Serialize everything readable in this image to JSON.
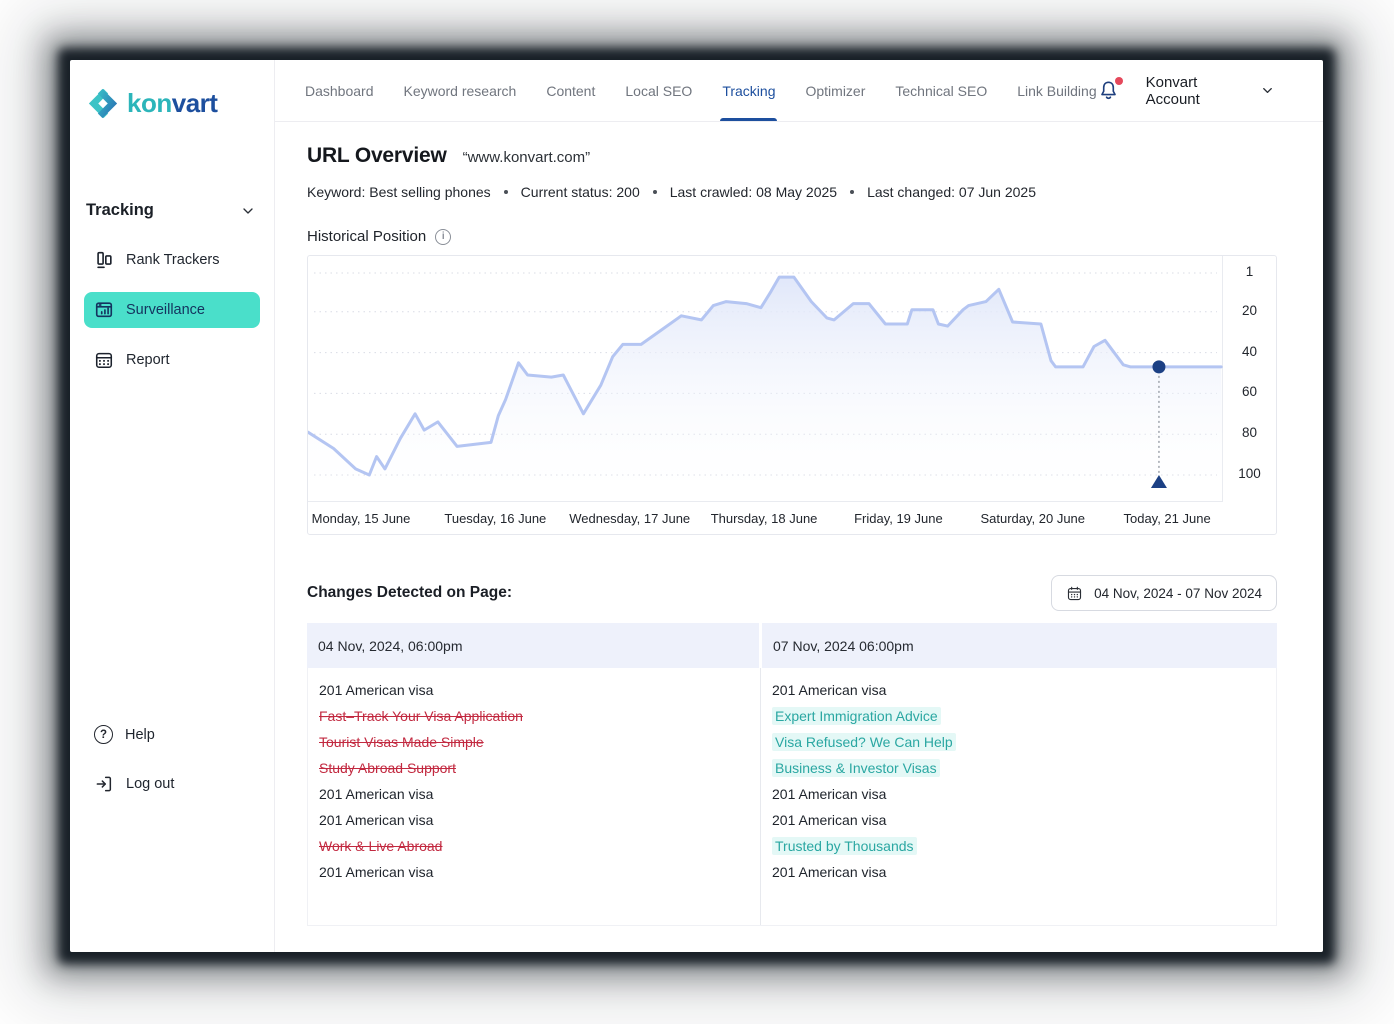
{
  "brand": {
    "kon": "kon",
    "vart": "vart"
  },
  "colors": {
    "accent_teal": "#4adfca",
    "brand_teal": "#2cb5ba",
    "brand_navy": "#1d4f9e",
    "active_tab_blue": "#1d4f9e",
    "chart_line": "#b4c5f2",
    "chart_marker_navy": "#1c4084",
    "removed_red": "#c22940",
    "added_teal_text": "#2aa7a2",
    "added_teal_bg": "#e4f8f6",
    "table_header_bg": "#eef1fb",
    "notification_dot": "#e5485b"
  },
  "sidebar": {
    "section_label": "Tracking",
    "items": [
      {
        "label": "Rank Trackers",
        "icon": "rank-trackers-icon",
        "active": false
      },
      {
        "label": "Surveillance",
        "icon": "surveillance-icon",
        "active": true
      },
      {
        "label": "Report",
        "icon": "report-calendar-icon",
        "active": false
      }
    ],
    "footer": [
      {
        "label": "Help",
        "icon": "help-question-icon"
      },
      {
        "label": "Log out",
        "icon": "logout-arrow-icon"
      }
    ]
  },
  "topnav": {
    "items": [
      {
        "label": "Dashboard",
        "active": false
      },
      {
        "label": "Keyword research",
        "active": false
      },
      {
        "label": "Content",
        "active": false
      },
      {
        "label": "Local SEO",
        "active": false
      },
      {
        "label": "Tracking",
        "active": true
      },
      {
        "label": "Optimizer",
        "active": false
      },
      {
        "label": "Technical SEO",
        "active": false
      },
      {
        "label": "Link Building",
        "active": false
      }
    ],
    "notification": {
      "icon": "bell-icon",
      "has_unread_dot": true
    },
    "account_label": "Konvart Account"
  },
  "page": {
    "title": "URL Overview",
    "url_quote": "“www.konvart.com”",
    "meta": [
      "Keyword: Best selling phones",
      "Current status: 200",
      "Last crawled: 08 May 2025",
      "Last changed: 07 Jun 2025"
    ]
  },
  "chart_section": {
    "title": "Historical Position"
  },
  "chart_data": {
    "type": "area",
    "title": "Historical Position",
    "x_ticks": [
      "Monday, 15 June",
      "Tuesday, 16 June",
      "Wednesday, 17 June",
      "Thursday, 18 June",
      "Friday, 19 June",
      "Saturday, 20 June",
      "Today, 21 June"
    ],
    "y_axis": {
      "label": "position",
      "ticks": [
        1,
        20,
        40,
        60,
        80,
        100
      ],
      "inverted": true,
      "range": [
        1,
        100
      ]
    },
    "legend": "none",
    "grid": "horizontal-dotted",
    "marker": {
      "t": 0.93,
      "position": 47,
      "x_tick": "Today, 21 June"
    },
    "points": [
      {
        "t": 0.0,
        "pos": 79
      },
      {
        "t": 0.028,
        "pos": 87
      },
      {
        "t": 0.052,
        "pos": 97
      },
      {
        "t": 0.067,
        "pos": 100
      },
      {
        "t": 0.075,
        "pos": 91
      },
      {
        "t": 0.084,
        "pos": 97
      },
      {
        "t": 0.101,
        "pos": 82
      },
      {
        "t": 0.117,
        "pos": 70
      },
      {
        "t": 0.127,
        "pos": 78
      },
      {
        "t": 0.142,
        "pos": 74
      },
      {
        "t": 0.163,
        "pos": 86
      },
      {
        "t": 0.2,
        "pos": 84
      },
      {
        "t": 0.208,
        "pos": 71
      },
      {
        "t": 0.216,
        "pos": 63
      },
      {
        "t": 0.23,
        "pos": 45
      },
      {
        "t": 0.24,
        "pos": 51
      },
      {
        "t": 0.266,
        "pos": 52
      },
      {
        "t": 0.279,
        "pos": 51
      },
      {
        "t": 0.301,
        "pos": 70
      },
      {
        "t": 0.32,
        "pos": 56
      },
      {
        "t": 0.333,
        "pos": 42
      },
      {
        "t": 0.344,
        "pos": 36
      },
      {
        "t": 0.364,
        "pos": 36
      },
      {
        "t": 0.386,
        "pos": 29
      },
      {
        "t": 0.408,
        "pos": 22
      },
      {
        "t": 0.43,
        "pos": 24
      },
      {
        "t": 0.443,
        "pos": 17
      },
      {
        "t": 0.457,
        "pos": 15
      },
      {
        "t": 0.479,
        "pos": 16
      },
      {
        "t": 0.495,
        "pos": 18
      },
      {
        "t": 0.506,
        "pos": 10
      },
      {
        "t": 0.515,
        "pos": 3
      },
      {
        "t": 0.531,
        "pos": 3
      },
      {
        "t": 0.55,
        "pos": 15
      },
      {
        "t": 0.567,
        "pos": 23
      },
      {
        "t": 0.575,
        "pos": 24
      },
      {
        "t": 0.596,
        "pos": 16
      },
      {
        "t": 0.613,
        "pos": 16
      },
      {
        "t": 0.631,
        "pos": 26
      },
      {
        "t": 0.655,
        "pos": 26
      },
      {
        "t": 0.66,
        "pos": 19
      },
      {
        "t": 0.683,
        "pos": 19
      },
      {
        "t": 0.689,
        "pos": 26
      },
      {
        "t": 0.699,
        "pos": 27
      },
      {
        "t": 0.716,
        "pos": 19
      },
      {
        "t": 0.722,
        "pos": 17
      },
      {
        "t": 0.741,
        "pos": 15
      },
      {
        "t": 0.755,
        "pos": 9
      },
      {
        "t": 0.77,
        "pos": 25
      },
      {
        "t": 0.801,
        "pos": 26
      },
      {
        "t": 0.812,
        "pos": 44
      },
      {
        "t": 0.817,
        "pos": 47
      },
      {
        "t": 0.847,
        "pos": 47
      },
      {
        "t": 0.859,
        "pos": 37
      },
      {
        "t": 0.871,
        "pos": 34
      },
      {
        "t": 0.891,
        "pos": 46
      },
      {
        "t": 0.899,
        "pos": 47
      },
      {
        "t": 0.93,
        "pos": 47
      },
      {
        "t": 0.998,
        "pos": 47
      }
    ]
  },
  "changes": {
    "title": "Changes Detected on Page:",
    "date_range": "04 Nov, 2024 - 07 Nov 2024",
    "date_range_icon": "calendar-icon",
    "columns": [
      {
        "header": "04 Nov, 2024,  06:00pm",
        "rows": [
          {
            "text": "201 American visa",
            "status": "normal"
          },
          {
            "text": "Fast–Track Your Visa Application",
            "status": "removed"
          },
          {
            "text": "Tourist Visas Made Simple",
            "status": "removed"
          },
          {
            "text": "Study Abroad Support",
            "status": "removed"
          },
          {
            "text": "201 American visa",
            "status": "normal"
          },
          {
            "text": "201 American visa",
            "status": "normal"
          },
          {
            "text": "Work & Live Abroad",
            "status": "removed"
          },
          {
            "text": "201 American visa",
            "status": "normal"
          }
        ]
      },
      {
        "header": "07 Nov, 2024  06:00pm",
        "rows": [
          {
            "text": "201 American visa",
            "status": "normal"
          },
          {
            "text": "Expert Immigration Advice",
            "status": "added"
          },
          {
            "text": "Visa Refused? We Can Help",
            "status": "added"
          },
          {
            "text": "Business & Investor Visas",
            "status": "added"
          },
          {
            "text": "201 American visa",
            "status": "normal"
          },
          {
            "text": "201 American visa",
            "status": "normal"
          },
          {
            "text": "Trusted by Thousands",
            "status": "added"
          },
          {
            "text": "201 American visa",
            "status": "normal"
          }
        ]
      }
    ]
  }
}
